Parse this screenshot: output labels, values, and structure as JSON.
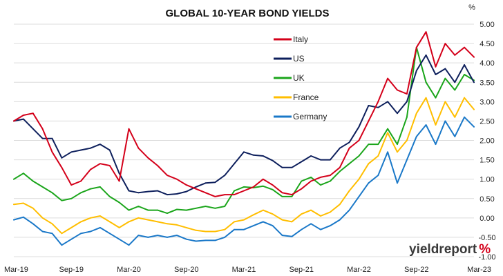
{
  "chart_data": {
    "type": "line",
    "title": "GLOBAL 10-YEAR BOND YIELDS",
    "y_unit": "%",
    "ylim": [
      -1.0,
      5.0
    ],
    "y_ticks": [
      "5.00",
      "4.50",
      "4.00",
      "3.50",
      "3.00",
      "2.50",
      "2.00",
      "1.50",
      "1.00",
      "0.50",
      "0.00",
      "-0.50",
      "-1.00"
    ],
    "x_ticks": [
      "Mar-19",
      "Sep-19",
      "Mar-20",
      "Sep-20",
      "Mar-21",
      "Sep-21",
      "Mar-22",
      "Sep-22",
      "Mar-23"
    ],
    "grid": "horizontal",
    "legend_position": "top-center",
    "series": [
      {
        "name": "Italy",
        "color": "#d4001a",
        "points": [
          [
            "Mar-19",
            2.5
          ],
          [
            "Apr-19",
            2.65
          ],
          [
            "May-19",
            2.7
          ],
          [
            "Jun-19",
            2.3
          ],
          [
            "Jul-19",
            1.7
          ],
          [
            "Aug-19",
            1.3
          ],
          [
            "Sep-19",
            0.85
          ],
          [
            "Oct-19",
            0.95
          ],
          [
            "Nov-19",
            1.25
          ],
          [
            "Dec-19",
            1.4
          ],
          [
            "Jan-20",
            1.35
          ],
          [
            "Feb-20",
            0.95
          ],
          [
            "Mar-20",
            2.3
          ],
          [
            "Apr-20",
            1.8
          ],
          [
            "May-20",
            1.55
          ],
          [
            "Jun-20",
            1.35
          ],
          [
            "Jul-20",
            1.1
          ],
          [
            "Aug-20",
            1.0
          ],
          [
            "Sep-20",
            0.85
          ],
          [
            "Oct-20",
            0.75
          ],
          [
            "Nov-20",
            0.65
          ],
          [
            "Dec-20",
            0.55
          ],
          [
            "Jan-21",
            0.6
          ],
          [
            "Feb-21",
            0.6
          ],
          [
            "Mar-21",
            0.7
          ],
          [
            "Apr-21",
            0.8
          ],
          [
            "May-21",
            1.0
          ],
          [
            "Jun-21",
            0.85
          ],
          [
            "Jul-21",
            0.65
          ],
          [
            "Aug-21",
            0.6
          ],
          [
            "Sep-21",
            0.75
          ],
          [
            "Oct-21",
            0.95
          ],
          [
            "Nov-21",
            1.05
          ],
          [
            "Dec-21",
            1.1
          ],
          [
            "Jan-22",
            1.3
          ],
          [
            "Feb-22",
            1.8
          ],
          [
            "Mar-22",
            2.0
          ],
          [
            "Apr-22",
            2.5
          ],
          [
            "May-22",
            3.0
          ],
          [
            "Jun-22",
            3.6
          ],
          [
            "Jul-22",
            3.3
          ],
          [
            "Aug-22",
            3.2
          ],
          [
            "Sep-22",
            4.4
          ],
          [
            "Oct-22",
            4.8
          ],
          [
            "Nov-22",
            3.9
          ],
          [
            "Dec-22",
            4.5
          ],
          [
            "Jan-23",
            4.2
          ],
          [
            "Feb-23",
            4.4
          ],
          [
            "Mar-23",
            4.15
          ]
        ]
      },
      {
        "name": "US",
        "color": "#0d1f5c",
        "points": [
          [
            "Mar-19",
            2.5
          ],
          [
            "Apr-19",
            2.55
          ],
          [
            "May-19",
            2.3
          ],
          [
            "Jun-19",
            2.05
          ],
          [
            "Jul-19",
            2.05
          ],
          [
            "Aug-19",
            1.55
          ],
          [
            "Sep-19",
            1.7
          ],
          [
            "Oct-19",
            1.75
          ],
          [
            "Nov-19",
            1.8
          ],
          [
            "Dec-19",
            1.9
          ],
          [
            "Jan-20",
            1.75
          ],
          [
            "Feb-20",
            1.15
          ],
          [
            "Mar-20",
            0.7
          ],
          [
            "Apr-20",
            0.65
          ],
          [
            "May-20",
            0.68
          ],
          [
            "Jun-20",
            0.7
          ],
          [
            "Jul-20",
            0.6
          ],
          [
            "Aug-20",
            0.62
          ],
          [
            "Sep-20",
            0.68
          ],
          [
            "Oct-20",
            0.8
          ],
          [
            "Nov-20",
            0.9
          ],
          [
            "Dec-20",
            0.92
          ],
          [
            "Jan-21",
            1.1
          ],
          [
            "Feb-21",
            1.4
          ],
          [
            "Mar-21",
            1.7
          ],
          [
            "Apr-21",
            1.62
          ],
          [
            "May-21",
            1.6
          ],
          [
            "Jun-21",
            1.48
          ],
          [
            "Jul-21",
            1.3
          ],
          [
            "Aug-21",
            1.3
          ],
          [
            "Sep-21",
            1.45
          ],
          [
            "Oct-21",
            1.6
          ],
          [
            "Nov-21",
            1.5
          ],
          [
            "Dec-21",
            1.5
          ],
          [
            "Jan-22",
            1.8
          ],
          [
            "Feb-22",
            1.95
          ],
          [
            "Mar-22",
            2.35
          ],
          [
            "Apr-22",
            2.9
          ],
          [
            "May-22",
            2.85
          ],
          [
            "Jun-22",
            3.0
          ],
          [
            "Jul-22",
            2.7
          ],
          [
            "Aug-22",
            3.0
          ],
          [
            "Sep-22",
            3.8
          ],
          [
            "Oct-22",
            4.2
          ],
          [
            "Nov-22",
            3.7
          ],
          [
            "Dec-22",
            3.85
          ],
          [
            "Jan-23",
            3.5
          ],
          [
            "Feb-23",
            3.95
          ],
          [
            "Mar-23",
            3.5
          ]
        ]
      },
      {
        "name": "UK",
        "color": "#1aa51a",
        "points": [
          [
            "Mar-19",
            1.0
          ],
          [
            "Apr-19",
            1.15
          ],
          [
            "May-19",
            0.95
          ],
          [
            "Jun-19",
            0.8
          ],
          [
            "Jul-19",
            0.65
          ],
          [
            "Aug-19",
            0.45
          ],
          [
            "Sep-19",
            0.5
          ],
          [
            "Oct-19",
            0.65
          ],
          [
            "Nov-19",
            0.75
          ],
          [
            "Dec-19",
            0.8
          ],
          [
            "Jan-20",
            0.55
          ],
          [
            "Feb-20",
            0.4
          ],
          [
            "Mar-20",
            0.2
          ],
          [
            "Apr-20",
            0.3
          ],
          [
            "May-20",
            0.2
          ],
          [
            "Jun-20",
            0.2
          ],
          [
            "Jul-20",
            0.12
          ],
          [
            "Aug-20",
            0.22
          ],
          [
            "Sep-20",
            0.2
          ],
          [
            "Oct-20",
            0.25
          ],
          [
            "Nov-20",
            0.3
          ],
          [
            "Dec-20",
            0.25
          ],
          [
            "Jan-21",
            0.3
          ],
          [
            "Feb-21",
            0.7
          ],
          [
            "Mar-21",
            0.8
          ],
          [
            "Apr-21",
            0.78
          ],
          [
            "May-21",
            0.82
          ],
          [
            "Jun-21",
            0.73
          ],
          [
            "Jul-21",
            0.55
          ],
          [
            "Aug-21",
            0.55
          ],
          [
            "Sep-21",
            0.95
          ],
          [
            "Oct-21",
            1.05
          ],
          [
            "Nov-21",
            0.85
          ],
          [
            "Dec-21",
            0.95
          ],
          [
            "Jan-22",
            1.2
          ],
          [
            "Feb-22",
            1.4
          ],
          [
            "Mar-22",
            1.6
          ],
          [
            "Apr-22",
            1.9
          ],
          [
            "May-22",
            1.9
          ],
          [
            "Jun-22",
            2.3
          ],
          [
            "Jul-22",
            1.9
          ],
          [
            "Aug-22",
            2.6
          ],
          [
            "Sep-22",
            4.4
          ],
          [
            "Oct-22",
            3.5
          ],
          [
            "Nov-22",
            3.1
          ],
          [
            "Dec-22",
            3.6
          ],
          [
            "Jan-23",
            3.3
          ],
          [
            "Feb-23",
            3.7
          ],
          [
            "Mar-23",
            3.55
          ]
        ]
      },
      {
        "name": "France",
        "color": "#ffbe00",
        "points": [
          [
            "Mar-19",
            0.35
          ],
          [
            "Apr-19",
            0.38
          ],
          [
            "May-19",
            0.25
          ],
          [
            "Jun-19",
            0.0
          ],
          [
            "Jul-19",
            -0.15
          ],
          [
            "Aug-19",
            -0.4
          ],
          [
            "Sep-19",
            -0.25
          ],
          [
            "Oct-19",
            -0.1
          ],
          [
            "Nov-19",
            0.0
          ],
          [
            "Dec-19",
            0.05
          ],
          [
            "Jan-20",
            -0.1
          ],
          [
            "Feb-20",
            -0.25
          ],
          [
            "Mar-20",
            -0.1
          ],
          [
            "Apr-20",
            0.0
          ],
          [
            "May-20",
            -0.05
          ],
          [
            "Jun-20",
            -0.1
          ],
          [
            "Jul-20",
            -0.15
          ],
          [
            "Aug-20",
            -0.18
          ],
          [
            "Sep-20",
            -0.25
          ],
          [
            "Oct-20",
            -0.32
          ],
          [
            "Nov-20",
            -0.35
          ],
          [
            "Dec-20",
            -0.35
          ],
          [
            "Jan-21",
            -0.3
          ],
          [
            "Feb-21",
            -0.1
          ],
          [
            "Mar-21",
            -0.05
          ],
          [
            "Apr-21",
            0.08
          ],
          [
            "May-21",
            0.2
          ],
          [
            "Jun-21",
            0.1
          ],
          [
            "Jul-21",
            -0.05
          ],
          [
            "Aug-21",
            -0.1
          ],
          [
            "Sep-21",
            0.1
          ],
          [
            "Oct-21",
            0.2
          ],
          [
            "Nov-21",
            0.05
          ],
          [
            "Dec-21",
            0.15
          ],
          [
            "Jan-22",
            0.35
          ],
          [
            "Feb-22",
            0.7
          ],
          [
            "Mar-22",
            1.0
          ],
          [
            "Apr-22",
            1.4
          ],
          [
            "May-22",
            1.6
          ],
          [
            "Jun-22",
            2.2
          ],
          [
            "Jul-22",
            1.7
          ],
          [
            "Aug-22",
            2.0
          ],
          [
            "Sep-22",
            2.7
          ],
          [
            "Oct-22",
            3.1
          ],
          [
            "Nov-22",
            2.4
          ],
          [
            "Dec-22",
            3.0
          ],
          [
            "Jan-23",
            2.6
          ],
          [
            "Feb-23",
            3.1
          ],
          [
            "Mar-23",
            2.8
          ]
        ]
      },
      {
        "name": "Germany",
        "color": "#1a78c8",
        "points": [
          [
            "Mar-19",
            -0.05
          ],
          [
            "Apr-19",
            0.02
          ],
          [
            "May-19",
            -0.15
          ],
          [
            "Jun-19",
            -0.35
          ],
          [
            "Jul-19",
            -0.4
          ],
          [
            "Aug-19",
            -0.7
          ],
          [
            "Sep-19",
            -0.55
          ],
          [
            "Oct-19",
            -0.4
          ],
          [
            "Nov-19",
            -0.35
          ],
          [
            "Dec-19",
            -0.25
          ],
          [
            "Jan-20",
            -0.4
          ],
          [
            "Feb-20",
            -0.55
          ],
          [
            "Mar-20",
            -0.7
          ],
          [
            "Apr-20",
            -0.45
          ],
          [
            "May-20",
            -0.5
          ],
          [
            "Jun-20",
            -0.45
          ],
          [
            "Jul-20",
            -0.5
          ],
          [
            "Aug-20",
            -0.45
          ],
          [
            "Sep-20",
            -0.55
          ],
          [
            "Oct-20",
            -0.6
          ],
          [
            "Nov-20",
            -0.58
          ],
          [
            "Dec-20",
            -0.58
          ],
          [
            "Jan-21",
            -0.5
          ],
          [
            "Feb-21",
            -0.3
          ],
          [
            "Mar-21",
            -0.3
          ],
          [
            "Apr-21",
            -0.2
          ],
          [
            "May-21",
            -0.1
          ],
          [
            "Jun-21",
            -0.2
          ],
          [
            "Jul-21",
            -0.45
          ],
          [
            "Aug-21",
            -0.48
          ],
          [
            "Sep-21",
            -0.3
          ],
          [
            "Oct-21",
            -0.15
          ],
          [
            "Nov-21",
            -0.3
          ],
          [
            "Dec-21",
            -0.2
          ],
          [
            "Jan-22",
            -0.05
          ],
          [
            "Feb-22",
            0.2
          ],
          [
            "Mar-22",
            0.55
          ],
          [
            "Apr-22",
            0.9
          ],
          [
            "May-22",
            1.1
          ],
          [
            "Jun-22",
            1.7
          ],
          [
            "Jul-22",
            0.9
          ],
          [
            "Aug-22",
            1.5
          ],
          [
            "Sep-22",
            2.1
          ],
          [
            "Oct-22",
            2.4
          ],
          [
            "Nov-22",
            1.9
          ],
          [
            "Dec-22",
            2.5
          ],
          [
            "Jan-23",
            2.1
          ],
          [
            "Feb-23",
            2.6
          ],
          [
            "Mar-23",
            2.35
          ]
        ]
      }
    ]
  },
  "branding": {
    "text_main": "yieldreport",
    "text_symbol": "%"
  }
}
